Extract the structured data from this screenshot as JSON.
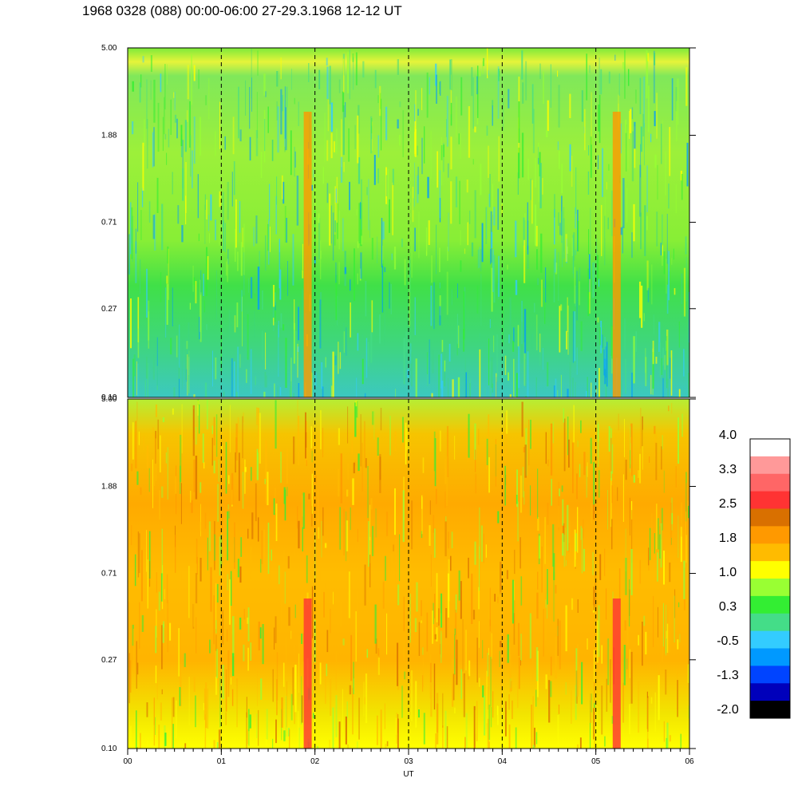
{
  "title": "1968 0328 (088) 00:00-06:00 27-29.3.1968  12-12 UT",
  "chart_data": [
    {
      "type": "heatmap",
      "panel": "top",
      "x": [
        0,
        6
      ],
      "xticks": [
        "00",
        "01",
        "02",
        "03",
        "04",
        "05",
        "06"
      ],
      "yticks": [
        "0.10",
        "0.27",
        "0.71",
        "1.88",
        "5.00"
      ],
      "yscale": "log",
      "ylim": [
        0.1,
        5.0
      ],
      "hour_markers_dashed": true,
      "dominant_levels": [
        "0.3",
        "-0.5",
        "1.0"
      ]
    },
    {
      "type": "heatmap",
      "panel": "bottom",
      "x": [
        0,
        6
      ],
      "xticks": [
        "00",
        "01",
        "02",
        "03",
        "04",
        "05",
        "06"
      ],
      "yticks": [
        "0.10",
        "0.27",
        "0.71",
        "1.88",
        "5.00"
      ],
      "yscale": "log",
      "ylim": [
        0.1,
        5.0
      ],
      "xlabel": "UT",
      "hour_markers_dashed": true,
      "dominant_levels": [
        "1.8",
        "1.0",
        "2.5"
      ]
    }
  ],
  "colorbar": {
    "labels": [
      "4.0",
      "3.3",
      "2.5",
      "1.8",
      "1.0",
      "0.3",
      "-0.5",
      "-1.3",
      "-2.0"
    ],
    "colors": [
      "#ffffff",
      "#ff9999",
      "#ff6666",
      "#ff3333",
      "#d97000",
      "#ff9900",
      "#ffbb00",
      "#ffff00",
      "#99ff33",
      "#33ee33",
      "#44dd88",
      "#33ccff",
      "#0099ff",
      "#0044ff",
      "#0000bb",
      "#000000"
    ]
  }
}
